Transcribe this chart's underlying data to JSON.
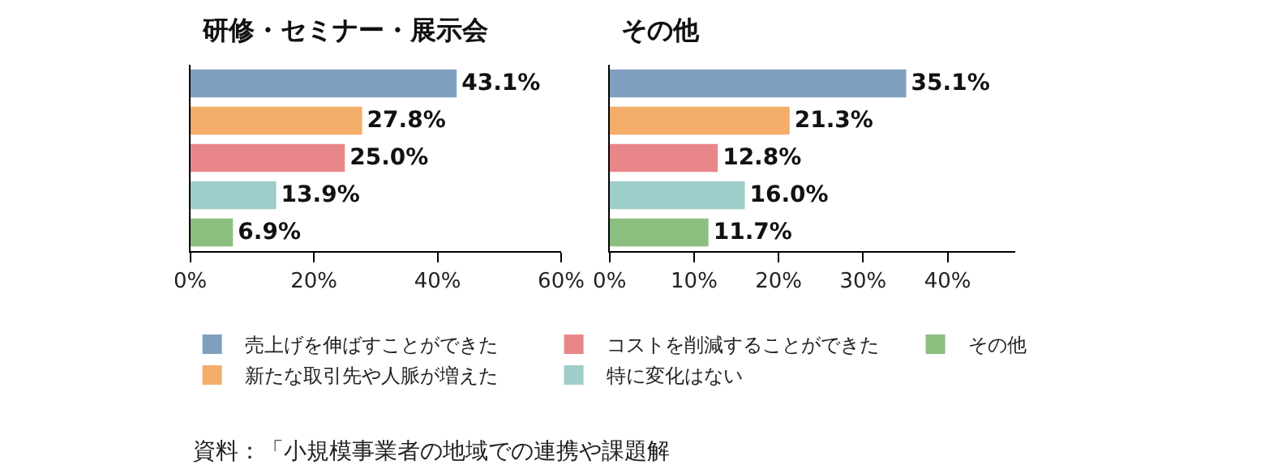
{
  "chart_data": [
    {
      "type": "bar",
      "orientation": "horizontal",
      "title": "研修・セミナー・展示会",
      "categories": [
        null,
        null,
        null,
        null,
        null
      ],
      "series": [
        {
          "name": "売上げを伸ばすことができた",
          "color": "#7f9fc0",
          "values": [
            43.1,
            null,
            null,
            null,
            null
          ],
          "value_labels": [
            "43.1%",
            null,
            null,
            null,
            null
          ]
        },
        {
          "name": "新たな取引先や人脈が増えた",
          "color": "#f5ad6a",
          "values": [
            null,
            27.8,
            null,
            null,
            null
          ],
          "value_labels": [
            null,
            "27.8%",
            null,
            null,
            null
          ]
        },
        {
          "name": "コストを削減することができた",
          "color": "#e8868a",
          "values": [
            null,
            null,
            25.0,
            null,
            null
          ],
          "value_labels": [
            null,
            null,
            "25.0%",
            null,
            null
          ]
        },
        {
          "name": "特に変化はない",
          "color": "#9fcdc9",
          "values": [
            null,
            null,
            null,
            13.9,
            null
          ],
          "value_labels": [
            null,
            null,
            null,
            "13.9%",
            null
          ]
        },
        {
          "name": "その他",
          "color": "#8bbf7f",
          "values": [
            null,
            null,
            null,
            null,
            6.9
          ],
          "value_labels": [
            null,
            null,
            null,
            null,
            "6.9%"
          ]
        }
      ],
      "xlim": [
        0,
        60
      ],
      "xticks": [
        {
          "value": 0,
          "label": "0%"
        },
        {
          "value": 20,
          "label": "20%"
        },
        {
          "value": 40,
          "label": "40%"
        },
        {
          "value": 60,
          "label": "60%"
        }
      ],
      "legend": "bottom",
      "tick_labels": "x",
      "annotations": [
        "資料：「小規模事業者の地域での連携や課題解"
      ]
    },
    {
      "type": "bar",
      "orientation": "horizontal",
      "title": "その他",
      "categories": [
        null,
        null,
        null,
        null,
        null
      ],
      "series": [
        {
          "color": "#7f9fc0",
          "values": [
            35.1,
            null,
            null,
            null,
            null
          ],
          "value_labels": [
            "35.1%",
            null,
            null,
            null,
            null
          ]
        },
        {
          "color": "#f5ad6a",
          "values": [
            null,
            21.3,
            null,
            null,
            null
          ],
          "value_labels": [
            null,
            "21.3%",
            null,
            null,
            null
          ]
        },
        {
          "color": "#e8868a",
          "values": [
            null,
            null,
            12.8,
            null,
            null
          ],
          "value_labels": [
            null,
            null,
            "12.8%",
            null,
            null
          ]
        },
        {
          "color": "#9fcdc9",
          "values": [
            null,
            null,
            null,
            16.0,
            null
          ],
          "value_labels": [
            null,
            null,
            null,
            "16.0%",
            null
          ]
        },
        {
          "color": "#8bbf7f",
          "values": [
            null,
            null,
            null,
            null,
            11.7
          ],
          "value_labels": [
            null,
            null,
            null,
            null,
            "11.7%"
          ]
        }
      ],
      "xlim": [
        0,
        48
      ],
      "xticks": [
        {
          "value": 0,
          "label": "0%"
        },
        {
          "value": 10,
          "label": "10%"
        },
        {
          "value": 20,
          "label": "20%"
        },
        {
          "value": 30,
          "label": "30%"
        },
        {
          "value": 40,
          "label": "40%"
        }
      ],
      "legend": false,
      "tick_labels": "x"
    }
  ]
}
